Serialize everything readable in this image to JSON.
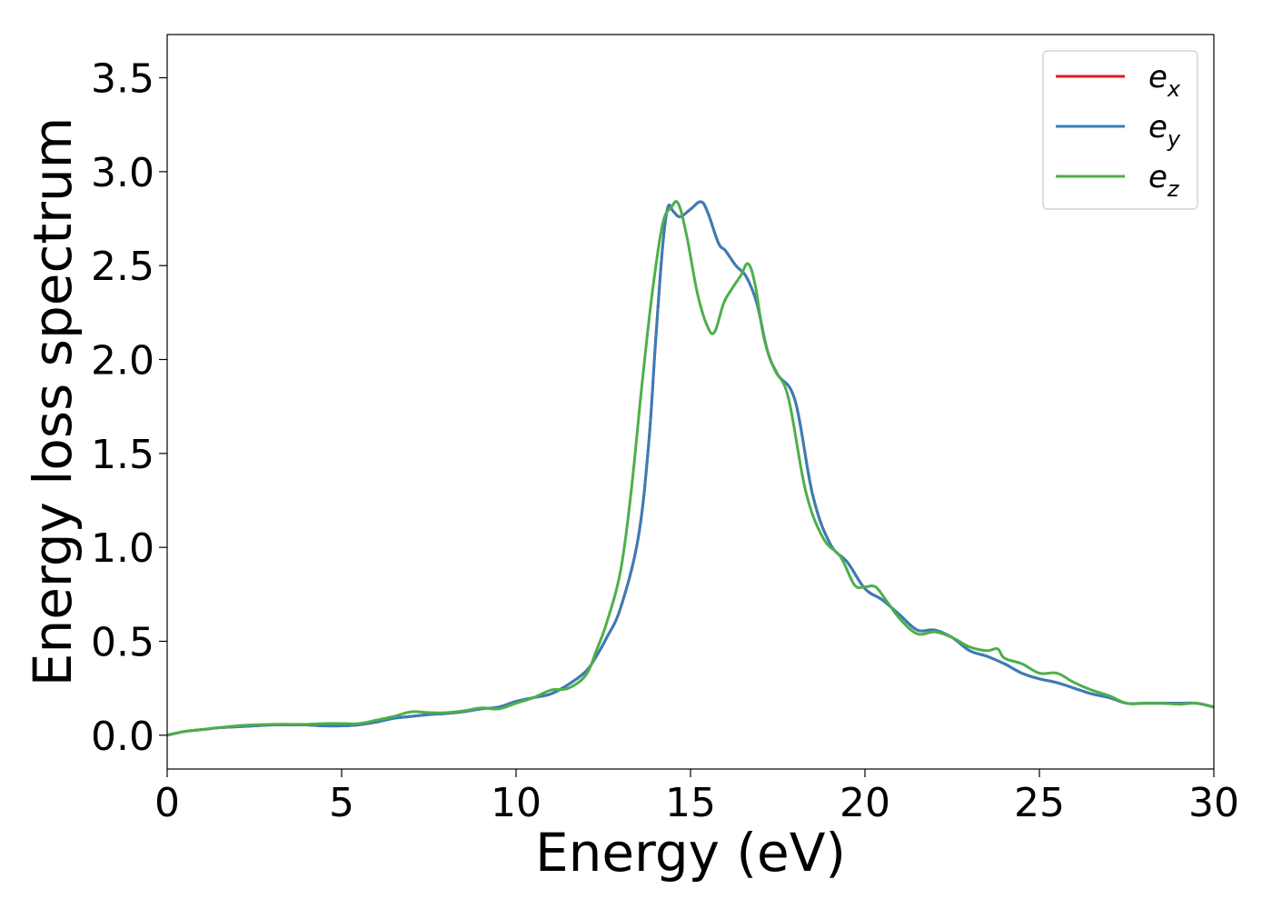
{
  "chart_data": {
    "type": "line",
    "title": "",
    "xlabel": "Energy (eV)",
    "ylabel": "Energy loss spectrum",
    "xlim": [
      0,
      30
    ],
    "ylim": [
      -0.18,
      3.73
    ],
    "xticks": [
      0,
      5,
      10,
      15,
      20,
      25,
      30
    ],
    "xtick_labels": [
      "0",
      "5",
      "10",
      "15",
      "20",
      "25",
      "30"
    ],
    "yticks": [
      0.0,
      0.5,
      1.0,
      1.5,
      2.0,
      2.5,
      3.0,
      3.5
    ],
    "ytick_labels": [
      "0.0",
      "0.5",
      "1.0",
      "1.5",
      "2.0",
      "2.5",
      "3.0",
      "3.5"
    ],
    "grid": false,
    "legend_position": "top-right",
    "series": [
      {
        "name": "e_x",
        "legend_base": "e",
        "legend_sub": "x",
        "color": "#e41a1c",
        "x": [
          0,
          0.5,
          1,
          1.5,
          2,
          2.5,
          3,
          3.5,
          4,
          4.5,
          5,
          5.5,
          6,
          6.5,
          7,
          7.5,
          8,
          8.5,
          9,
          9.5,
          10,
          10.5,
          11,
          11.5,
          12,
          12.3,
          12.6,
          13,
          13.5,
          13.8,
          14,
          14.2,
          14.35,
          14.5,
          14.7,
          15,
          15.3,
          15.5,
          15.8,
          16,
          16.3,
          16.6,
          16.9,
          17.2,
          17.5,
          18,
          18.5,
          19,
          19.5,
          20,
          20.5,
          21,
          21.5,
          22,
          22.5,
          23,
          23.5,
          24,
          24.5,
          25,
          25.5,
          26,
          26.5,
          27,
          27.5,
          28,
          28.5,
          29,
          29.5,
          30
        ],
        "y": [
          0.0,
          0.02,
          0.03,
          0.04,
          0.045,
          0.05,
          0.055,
          0.055,
          0.055,
          0.05,
          0.05,
          0.055,
          0.07,
          0.09,
          0.1,
          0.11,
          0.115,
          0.125,
          0.14,
          0.15,
          0.18,
          0.2,
          0.22,
          0.27,
          0.34,
          0.42,
          0.52,
          0.68,
          1.05,
          1.55,
          2.1,
          2.6,
          2.81,
          2.79,
          2.76,
          2.8,
          2.84,
          2.78,
          2.62,
          2.58,
          2.5,
          2.44,
          2.3,
          2.05,
          1.92,
          1.78,
          1.28,
          1.02,
          0.92,
          0.78,
          0.72,
          0.64,
          0.56,
          0.56,
          0.52,
          0.45,
          0.42,
          0.38,
          0.33,
          0.3,
          0.28,
          0.25,
          0.22,
          0.2,
          0.17,
          0.17,
          0.17,
          0.17,
          0.17,
          0.15
        ]
      },
      {
        "name": "e_y",
        "legend_base": "e",
        "legend_sub": "y",
        "color": "#377eb8",
        "x": [
          0,
          0.5,
          1,
          1.5,
          2,
          2.5,
          3,
          3.5,
          4,
          4.5,
          5,
          5.5,
          6,
          6.5,
          7,
          7.5,
          8,
          8.5,
          9,
          9.5,
          10,
          10.5,
          11,
          11.5,
          12,
          12.3,
          12.6,
          13,
          13.5,
          13.8,
          14,
          14.2,
          14.35,
          14.5,
          14.7,
          15,
          15.3,
          15.5,
          15.8,
          16,
          16.3,
          16.6,
          16.9,
          17.2,
          17.5,
          18,
          18.5,
          19,
          19.5,
          20,
          20.5,
          21,
          21.5,
          22,
          22.5,
          23,
          23.5,
          24,
          24.5,
          25,
          25.5,
          26,
          26.5,
          27,
          27.5,
          28,
          28.5,
          29,
          29.5,
          30
        ],
        "y": [
          0.0,
          0.02,
          0.03,
          0.04,
          0.045,
          0.05,
          0.055,
          0.055,
          0.055,
          0.05,
          0.05,
          0.055,
          0.07,
          0.09,
          0.1,
          0.11,
          0.115,
          0.125,
          0.14,
          0.15,
          0.18,
          0.2,
          0.22,
          0.27,
          0.34,
          0.42,
          0.52,
          0.68,
          1.05,
          1.55,
          2.1,
          2.6,
          2.81,
          2.79,
          2.76,
          2.8,
          2.84,
          2.78,
          2.62,
          2.58,
          2.5,
          2.44,
          2.3,
          2.05,
          1.92,
          1.78,
          1.28,
          1.02,
          0.92,
          0.78,
          0.72,
          0.64,
          0.56,
          0.56,
          0.52,
          0.45,
          0.42,
          0.38,
          0.33,
          0.3,
          0.28,
          0.25,
          0.22,
          0.2,
          0.17,
          0.17,
          0.17,
          0.17,
          0.17,
          0.15
        ]
      },
      {
        "name": "e_z",
        "legend_base": "e",
        "legend_sub": "z",
        "color": "#4daf4a",
        "x": [
          0,
          0.5,
          1,
          1.5,
          2,
          2.5,
          3,
          3.5,
          4,
          4.5,
          5,
          5.5,
          6,
          6.5,
          7,
          7.5,
          8,
          8.5,
          9,
          9.5,
          10,
          10.5,
          11,
          11.5,
          12,
          12.3,
          12.6,
          13,
          13.3,
          13.6,
          13.9,
          14.2,
          14.45,
          14.65,
          14.9,
          15.2,
          15.5,
          15.7,
          15.95,
          16.2,
          16.45,
          16.65,
          16.85,
          17.1,
          17.4,
          17.8,
          18.3,
          18.8,
          19.3,
          19.7,
          20,
          20.3,
          20.6,
          21,
          21.5,
          22,
          22.5,
          23,
          23.5,
          23.8,
          24,
          24.5,
          25,
          25.5,
          26,
          26.5,
          27,
          27.5,
          28,
          28.5,
          29,
          29.5,
          30
        ],
        "y": [
          0.0,
          0.02,
          0.03,
          0.04,
          0.05,
          0.055,
          0.058,
          0.058,
          0.058,
          0.062,
          0.062,
          0.062,
          0.08,
          0.1,
          0.125,
          0.12,
          0.12,
          0.13,
          0.145,
          0.14,
          0.17,
          0.2,
          0.24,
          0.25,
          0.32,
          0.45,
          0.6,
          0.88,
          1.3,
          1.85,
          2.35,
          2.72,
          2.81,
          2.83,
          2.65,
          2.35,
          2.17,
          2.15,
          2.3,
          2.38,
          2.45,
          2.51,
          2.4,
          2.12,
          1.95,
          1.8,
          1.3,
          1.05,
          0.95,
          0.8,
          0.79,
          0.79,
          0.72,
          0.62,
          0.54,
          0.55,
          0.52,
          0.47,
          0.45,
          0.46,
          0.41,
          0.38,
          0.33,
          0.33,
          0.28,
          0.24,
          0.21,
          0.17,
          0.17,
          0.17,
          0.165,
          0.17,
          0.15
        ]
      }
    ]
  }
}
